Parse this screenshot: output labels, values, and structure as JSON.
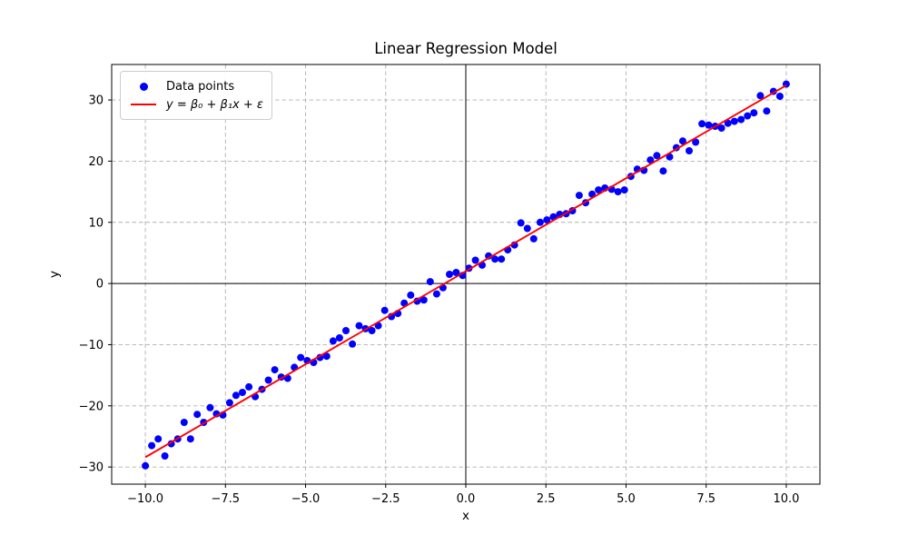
{
  "chart_data": {
    "type": "scatter",
    "title": "Linear Regression Model",
    "xlabel": "x",
    "ylabel": "y",
    "xlim": [
      -11.05,
      11.05
    ],
    "ylim": [
      -32.8,
      35.8
    ],
    "x_ticks": [
      -10.0,
      -7.5,
      -5.0,
      -2.5,
      0.0,
      2.5,
      5.0,
      7.5,
      10.0
    ],
    "x_tick_labels": [
      "−10.0",
      "−7.5",
      "−5.0",
      "−2.5",
      "0.0",
      "2.5",
      "5.0",
      "7.5",
      "10.0"
    ],
    "y_ticks": [
      -30,
      -20,
      -10,
      0,
      10,
      20,
      30
    ],
    "y_tick_labels": [
      "−30",
      "−20",
      "−10",
      "0",
      "10",
      "20",
      "30"
    ],
    "grid": true,
    "grid_style": "dashed",
    "zero_lines": true,
    "colors": {
      "scatter": "#0000ff",
      "regression_line": "#ff0000",
      "grid": "#b0b0b0",
      "axis": "#000000",
      "background": "#ffffff"
    },
    "legend": {
      "position": "upper-left",
      "entries": [
        {
          "label": "Data points",
          "marker": "dot",
          "color": "#0000ff"
        },
        {
          "label": "y = β₀ + β₁x + ε",
          "marker": "line",
          "color": "#ff0000"
        }
      ]
    },
    "series": [
      {
        "name": "Data points",
        "type": "scatter",
        "color": "#0000ff",
        "points": [
          [
            -10.0,
            -29.8
          ],
          [
            -9.8,
            -26.5
          ],
          [
            -9.6,
            -25.4
          ],
          [
            -9.39,
            -28.2
          ],
          [
            -9.19,
            -26.2
          ],
          [
            -8.99,
            -25.4
          ],
          [
            -8.79,
            -22.7
          ],
          [
            -8.59,
            -25.4
          ],
          [
            -8.38,
            -21.4
          ],
          [
            -8.18,
            -22.7
          ],
          [
            -7.98,
            -20.3
          ],
          [
            -7.78,
            -21.3
          ],
          [
            -7.58,
            -21.5
          ],
          [
            -7.37,
            -19.5
          ],
          [
            -7.17,
            -18.3
          ],
          [
            -6.97,
            -17.8
          ],
          [
            -6.77,
            -16.9
          ],
          [
            -6.57,
            -18.5
          ],
          [
            -6.36,
            -17.3
          ],
          [
            -6.16,
            -15.8
          ],
          [
            -5.96,
            -14.1
          ],
          [
            -5.76,
            -15.3
          ],
          [
            -5.56,
            -15.5
          ],
          [
            -5.35,
            -13.7
          ],
          [
            -5.15,
            -12.1
          ],
          [
            -4.95,
            -12.6
          ],
          [
            -4.75,
            -12.9
          ],
          [
            -4.55,
            -12.1
          ],
          [
            -4.34,
            -11.9
          ],
          [
            -4.14,
            -9.4
          ],
          [
            -3.94,
            -8.9
          ],
          [
            -3.74,
            -7.7
          ],
          [
            -3.54,
            -9.9
          ],
          [
            -3.33,
            -6.9
          ],
          [
            -3.13,
            -7.4
          ],
          [
            -2.93,
            -7.7
          ],
          [
            -2.73,
            -6.9
          ],
          [
            -2.53,
            -4.4
          ],
          [
            -2.32,
            -5.4
          ],
          [
            -2.12,
            -4.9
          ],
          [
            -1.92,
            -3.2
          ],
          [
            -1.72,
            -1.9
          ],
          [
            -1.52,
            -2.9
          ],
          [
            -1.31,
            -2.7
          ],
          [
            -1.11,
            0.3
          ],
          [
            -0.91,
            -1.7
          ],
          [
            -0.71,
            -0.7
          ],
          [
            -0.51,
            1.5
          ],
          [
            -0.3,
            1.8
          ],
          [
            -0.1,
            1.3
          ],
          [
            0.1,
            2.5
          ],
          [
            0.3,
            3.8
          ],
          [
            0.51,
            3.0
          ],
          [
            0.71,
            4.5
          ],
          [
            0.91,
            4.0
          ],
          [
            1.11,
            4.0
          ],
          [
            1.31,
            5.5
          ],
          [
            1.52,
            6.3
          ],
          [
            1.72,
            9.9
          ],
          [
            1.92,
            9.0
          ],
          [
            2.12,
            7.3
          ],
          [
            2.32,
            10.0
          ],
          [
            2.53,
            10.4
          ],
          [
            2.73,
            10.9
          ],
          [
            2.93,
            11.3
          ],
          [
            3.13,
            11.4
          ],
          [
            3.33,
            11.9
          ],
          [
            3.54,
            14.4
          ],
          [
            3.74,
            13.2
          ],
          [
            3.94,
            14.6
          ],
          [
            4.14,
            15.3
          ],
          [
            4.34,
            15.6
          ],
          [
            4.55,
            15.4
          ],
          [
            4.75,
            15.0
          ],
          [
            4.95,
            15.3
          ],
          [
            5.15,
            17.5
          ],
          [
            5.35,
            18.7
          ],
          [
            5.56,
            18.5
          ],
          [
            5.76,
            20.2
          ],
          [
            5.96,
            20.9
          ],
          [
            6.16,
            18.4
          ],
          [
            6.36,
            20.7
          ],
          [
            6.57,
            22.2
          ],
          [
            6.77,
            23.3
          ],
          [
            6.97,
            21.7
          ],
          [
            7.17,
            23.1
          ],
          [
            7.37,
            26.1
          ],
          [
            7.58,
            25.9
          ],
          [
            7.78,
            25.7
          ],
          [
            7.98,
            25.4
          ],
          [
            8.18,
            26.2
          ],
          [
            8.38,
            26.5
          ],
          [
            8.59,
            26.8
          ],
          [
            8.79,
            27.4
          ],
          [
            8.99,
            27.9
          ],
          [
            9.19,
            30.7
          ],
          [
            9.39,
            28.2
          ],
          [
            9.6,
            31.4
          ],
          [
            9.8,
            30.6
          ],
          [
            10.0,
            32.6
          ]
        ]
      },
      {
        "name": "y = β₀ + β₁x + ε",
        "type": "line",
        "color": "#ff0000",
        "points": [
          [
            -10.0,
            -28.4
          ],
          [
            10.0,
            32.4
          ]
        ]
      }
    ]
  }
}
